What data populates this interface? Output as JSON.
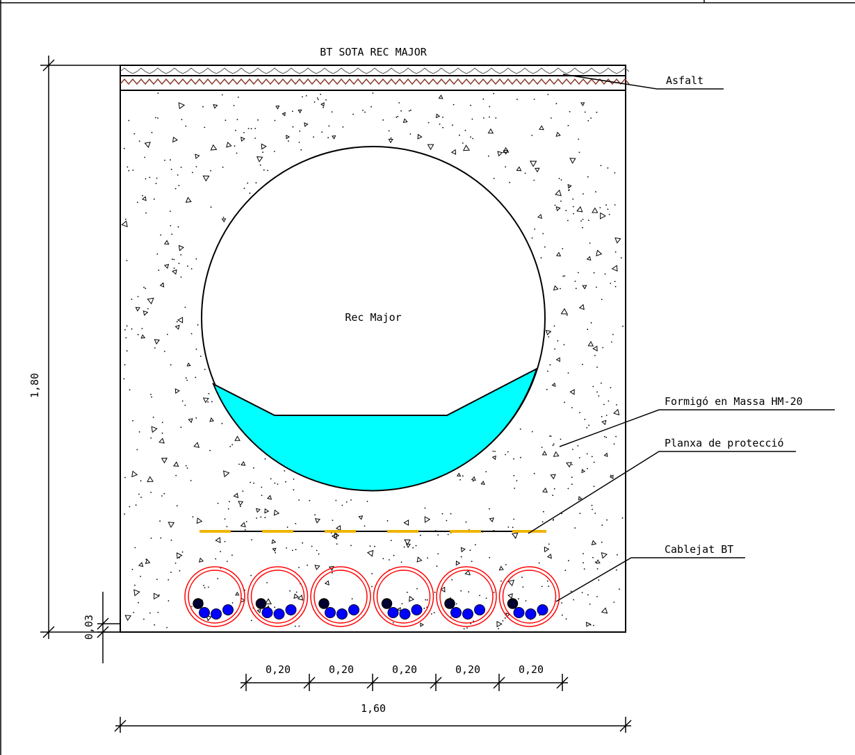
{
  "title": "BT SOTA REC MAJOR",
  "labels": {
    "asfalt": "Asfalt",
    "formigo": "Formigó en Massa HM-20",
    "planxa": "Planxa de protecció",
    "cablejat": "Cablejat BT",
    "rec_major": "Rec Major"
  },
  "dimensions": {
    "height_total": "1,80",
    "bottom_cover": "0,03",
    "spacings": [
      "0,20",
      "0,20",
      "0,20",
      "0,20",
      "0,20"
    ],
    "width_total": "1,60"
  },
  "colors": {
    "water": "#00ffff",
    "conduit": "#ff0000",
    "cable": "#0000ff",
    "plate": "#f0b400",
    "asphalt_hatch": "#8b3a2a",
    "line": "#000000"
  },
  "conduit_count": 6
}
